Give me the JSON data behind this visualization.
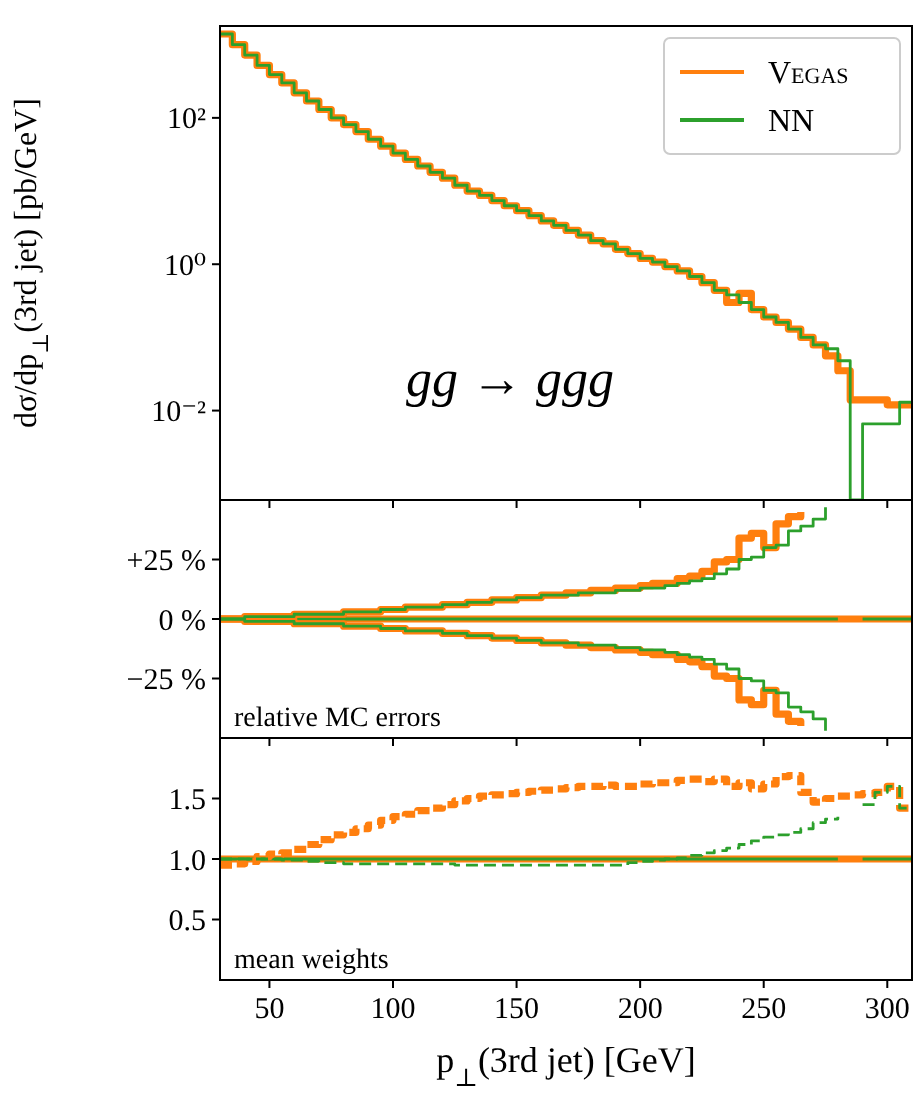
{
  "chart_data": [
    {
      "type": "step",
      "ylabel": "dσ/dp$_{⊥}$(3rd jet) [pb/GeV]",
      "log": true,
      "legend": "top right",
      "tick_labels": "y",
      "annotations": [
        "gg → ggg"
      ],
      "x": [
        30,
        35,
        40,
        45,
        50,
        55,
        60,
        65,
        70,
        75,
        80,
        85,
        90,
        95,
        100,
        105,
        110,
        115,
        120,
        125,
        130,
        135,
        140,
        145,
        150,
        155,
        160,
        165,
        170,
        175,
        180,
        185,
        190,
        195,
        200,
        205,
        210,
        215,
        220,
        225,
        230,
        235,
        240,
        245,
        250,
        255,
        260,
        265,
        270,
        275,
        280,
        285,
        290,
        295,
        300,
        305,
        310
      ],
      "xlim": [
        30,
        310
      ],
      "xticks": [
        50,
        100,
        150,
        200,
        250,
        300
      ],
      "ylim": [
        0.0006,
        1800
      ],
      "yticks": [
        {
          "value": 100,
          "label": "10²"
        },
        {
          "value": 1,
          "label": "10⁰"
        },
        {
          "value": 0.01,
          "label": "10⁻²"
        }
      ],
      "series": [
        {
          "name": "Vegas",
          "color": "#ff7f0e",
          "values": [
            1400,
            1000,
            720,
            520,
            390,
            300,
            220,
            170,
            130,
            100,
            81,
            65,
            51,
            41,
            33,
            27,
            22,
            18,
            15,
            12,
            10,
            8.7,
            7.4,
            6.3,
            5.4,
            4.6,
            3.9,
            3.4,
            2.9,
            2.5,
            2.1,
            1.9,
            1.6,
            1.4,
            1.2,
            1.07,
            0.93,
            0.81,
            0.68,
            0.56,
            0.44,
            0.3,
            0.4,
            0.24,
            0.19,
            0.16,
            0.13,
            0.1,
            0.079,
            0.056,
            0.035,
            0.014,
            0.014,
            0.014,
            0.012,
            0.012,
            0.012
          ]
        },
        {
          "name": "NN",
          "color": "#2ca02c",
          "values": [
            1400,
            1000,
            720,
            520,
            390,
            300,
            220,
            170,
            130,
            100,
            81,
            65,
            51,
            41,
            33,
            27,
            22,
            18,
            15,
            12,
            10,
            8.7,
            7.4,
            6.3,
            5.4,
            4.6,
            3.9,
            3.4,
            2.9,
            2.5,
            2.1,
            1.9,
            1.6,
            1.4,
            1.2,
            1.07,
            0.93,
            0.81,
            0.68,
            0.56,
            0.44,
            0.38,
            0.3,
            0.24,
            0.19,
            0.16,
            0.13,
            0.1,
            0.079,
            0.07,
            0.048,
            0.0006,
            0.0066,
            0.0066,
            0.0066,
            0.013,
            0.013
          ]
        }
      ]
    },
    {
      "type": "step",
      "tick_labels": "y",
      "annotations": [
        "relative MC errors"
      ],
      "x": [
        30,
        35,
        40,
        45,
        50,
        55,
        60,
        65,
        70,
        75,
        80,
        85,
        90,
        95,
        100,
        105,
        110,
        115,
        120,
        125,
        130,
        135,
        140,
        145,
        150,
        155,
        160,
        165,
        170,
        175,
        180,
        185,
        190,
        195,
        200,
        205,
        210,
        215,
        220,
        225,
        230,
        235,
        240,
        245,
        250,
        255,
        260,
        265,
        270,
        275,
        280,
        285,
        290,
        295,
        300,
        305,
        310
      ],
      "xlim": [
        30,
        310
      ],
      "xticks": [
        50,
        100,
        150,
        200,
        250,
        300
      ],
      "ylim": [
        -50,
        50
      ],
      "yticks": [
        {
          "value": 25,
          "label": "+25 %"
        },
        {
          "value": 0,
          "label": "0 %"
        },
        {
          "value": -25,
          "label": "−25 %"
        }
      ],
      "series": [
        {
          "color": "#ff7f0e",
          "values": [
            0,
            0,
            0,
            0,
            0,
            0,
            0,
            0,
            0,
            0,
            0,
            0,
            0,
            0,
            0,
            0,
            0,
            0,
            0,
            0,
            0,
            0,
            0,
            0,
            0,
            0,
            0,
            0,
            0,
            0,
            0,
            0,
            0,
            0,
            0,
            0,
            0,
            0,
            0,
            0,
            0,
            0,
            0,
            0,
            0,
            0,
            0,
            0,
            0,
            0,
            0,
            0,
            0,
            0,
            0,
            0,
            0
          ]
        },
        {
          "color": "#2ca02c",
          "values": [
            0,
            0,
            0,
            0,
            0,
            0,
            0,
            0,
            0,
            0,
            0,
            0,
            0,
            0,
            0,
            0,
            0,
            0,
            0,
            0,
            0,
            0,
            0,
            0,
            0,
            0,
            0,
            0,
            0,
            0,
            0,
            0,
            0,
            0,
            0,
            0,
            0,
            0,
            0,
            0,
            0,
            0,
            0,
            0,
            0,
            0,
            0,
            0,
            0,
            0,
            0,
            null,
            0,
            0,
            0,
            0,
            0
          ]
        },
        {
          "color": "#ff7f0e",
          "values": [
            0,
            0,
            1,
            1,
            1,
            1,
            2,
            2,
            2,
            2,
            3,
            3,
            3,
            4,
            4,
            5,
            5,
            5,
            6,
            6,
            7,
            7,
            8,
            8,
            9,
            9,
            10,
            10,
            11,
            11,
            12,
            12,
            13,
            13,
            14,
            15,
            15,
            17,
            18,
            20,
            24,
            25,
            34,
            36,
            30,
            40,
            43,
            45,
            null,
            null,
            null,
            null,
            null,
            null,
            null,
            null,
            null
          ]
        },
        {
          "color": "#ff7f0e",
          "values": [
            0,
            0,
            -1,
            -1,
            -1,
            -1,
            -2,
            -2,
            -2,
            -2,
            -3,
            -3,
            -3,
            -4,
            -4,
            -5,
            -5,
            -5,
            -6,
            -6,
            -7,
            -7,
            -8,
            -8,
            -9,
            -9,
            -10,
            -10,
            -11,
            -11,
            -12,
            -12,
            -13,
            -13,
            -14,
            -15,
            -15,
            -17,
            -18,
            -20,
            -24,
            -25,
            -34,
            -36,
            -30,
            -40,
            -43,
            -45,
            null,
            null,
            null,
            null,
            null,
            null,
            null,
            null,
            null
          ]
        },
        {
          "color": "#2ca02c",
          "values": [
            0,
            0,
            1,
            1,
            1,
            1,
            2,
            2,
            2,
            2,
            3,
            3,
            3,
            4,
            4,
            5,
            5,
            5,
            6,
            6,
            7,
            7,
            8,
            8,
            9,
            9,
            10,
            10,
            10,
            11,
            11,
            11,
            12,
            12,
            13,
            13,
            14,
            15,
            16,
            17,
            19,
            21,
            25,
            26,
            30,
            31,
            37,
            39,
            42,
            47,
            null,
            null,
            null,
            null,
            null,
            null,
            null
          ]
        },
        {
          "color": "#2ca02c",
          "values": [
            0,
            0,
            -1,
            -1,
            -1,
            -1,
            -2,
            -2,
            -2,
            -2,
            -3,
            -3,
            -3,
            -4,
            -4,
            -5,
            -5,
            -5,
            -6,
            -6,
            -7,
            -7,
            -8,
            -8,
            -9,
            -9,
            -10,
            -10,
            -10,
            -11,
            -11,
            -11,
            -12,
            -12,
            -13,
            -13,
            -14,
            -15,
            -16,
            -17,
            -19,
            -21,
            -25,
            -26,
            -30,
            -31,
            -37,
            -39,
            -42,
            -47,
            null,
            null,
            null,
            null,
            null,
            null,
            null
          ]
        }
      ]
    },
    {
      "type": "step",
      "xlabel": "p$_{⊥}$(3rd jet) [GeV]",
      "annotations": [
        "mean weights"
      ],
      "x": [
        30,
        35,
        40,
        45,
        50,
        55,
        60,
        65,
        70,
        75,
        80,
        85,
        90,
        95,
        100,
        105,
        110,
        115,
        120,
        125,
        130,
        135,
        140,
        145,
        150,
        155,
        160,
        165,
        170,
        175,
        180,
        185,
        190,
        195,
        200,
        205,
        210,
        215,
        220,
        225,
        230,
        235,
        240,
        245,
        250,
        255,
        260,
        265,
        270,
        275,
        280,
        285,
        290,
        295,
        300,
        305,
        310
      ],
      "xlim": [
        30,
        310
      ],
      "xticks": [
        50,
        100,
        150,
        200,
        250,
        300
      ],
      "ylim": [
        0,
        2
      ],
      "yticks": [
        0.5,
        {
          "value": 1,
          "label": "1.0"
        },
        1.5
      ],
      "series": [
        {
          "color": "#ff7f0e",
          "line_style": "solid",
          "values": [
            1,
            1,
            1,
            1,
            1,
            1,
            1,
            1,
            1,
            1,
            1,
            1,
            1,
            1,
            1,
            1,
            1,
            1,
            1,
            1,
            1,
            1,
            1,
            1,
            1,
            1,
            1,
            1,
            1,
            1,
            1,
            1,
            1,
            1,
            1,
            1,
            1,
            1,
            1,
            1,
            1,
            1,
            1,
            1,
            1,
            1,
            1,
            1,
            1,
            1,
            1,
            1,
            1,
            1,
            1,
            1,
            1
          ]
        },
        {
          "color": "#2ca02c",
          "line_style": "solid",
          "values": [
            1,
            1,
            1,
            1,
            1,
            1,
            1,
            1,
            1,
            1,
            1,
            1,
            1,
            1,
            1,
            1,
            1,
            1,
            1,
            1,
            1,
            1,
            1,
            1,
            1,
            1,
            1,
            1,
            1,
            1,
            1,
            1,
            1,
            1,
            1,
            1,
            1,
            1,
            1,
            1,
            1,
            1,
            1,
            1,
            1,
            1,
            1,
            1,
            1,
            1,
            1,
            null,
            1,
            1,
            1,
            1,
            1
          ]
        },
        {
          "color": "#ff7f0e",
          "line_style": "dashed",
          "values": [
            0.95,
            0.96,
            0.98,
            1.02,
            1.04,
            1.05,
            1.08,
            1.12,
            1.16,
            1.2,
            1.22,
            1.25,
            1.28,
            1.32,
            1.35,
            1.37,
            1.4,
            1.42,
            1.45,
            1.48,
            1.5,
            1.52,
            1.53,
            1.54,
            1.55,
            1.56,
            1.57,
            1.58,
            1.59,
            1.6,
            1.6,
            1.61,
            1.6,
            1.6,
            1.62,
            1.63,
            1.63,
            1.65,
            1.66,
            1.64,
            1.66,
            1.6,
            1.63,
            1.58,
            1.62,
            1.68,
            1.69,
            1.55,
            1.47,
            1.5,
            1.52,
            1.53,
            1.54,
            1.55,
            1.6,
            1.42,
            1.42
          ]
        },
        {
          "color": "#2ca02c",
          "line_style": "dashed",
          "values": [
            1.0,
            1.0,
            1.0,
            1.0,
            1.0,
            0.99,
            0.99,
            0.98,
            0.97,
            0.97,
            0.96,
            0.96,
            0.96,
            0.96,
            0.96,
            0.96,
            0.96,
            0.96,
            0.96,
            0.95,
            0.95,
            0.95,
            0.95,
            0.95,
            0.95,
            0.95,
            0.95,
            0.95,
            0.95,
            0.95,
            0.95,
            0.95,
            0.95,
            0.97,
            0.98,
            0.99,
            1.0,
            1.01,
            1.03,
            1.05,
            1.07,
            1.09,
            1.12,
            1.15,
            1.18,
            1.2,
            1.22,
            1.25,
            1.3,
            1.33,
            1.35,
            null,
            1.45,
            1.55,
            1.6,
            1.42,
            1.42
          ]
        }
      ]
    }
  ]
}
